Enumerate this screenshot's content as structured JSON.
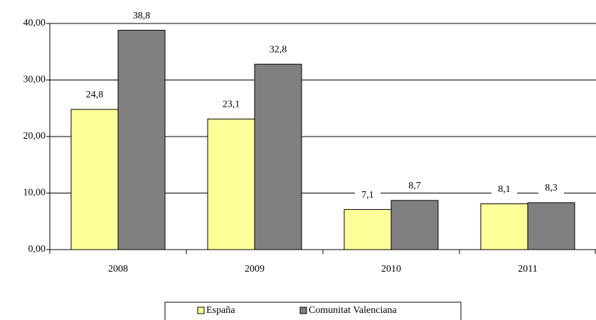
{
  "chart_data": {
    "type": "bar",
    "categories": [
      "2008",
      "2009",
      "2010",
      "2011"
    ],
    "series": [
      {
        "name": "España",
        "color": "#ffff99",
        "values": [
          24.8,
          23.1,
          7.1,
          8.1
        ],
        "value_labels": [
          "24,8",
          "23,1",
          "7,1",
          "8,1"
        ]
      },
      {
        "name": "Comunitat Valenciana",
        "color": "#808080",
        "values": [
          38.8,
          32.8,
          8.7,
          8.3
        ],
        "value_labels": [
          "38,8",
          "32,8",
          "8,7",
          "8,3"
        ]
      }
    ],
    "ylim": [
      0,
      40
    ],
    "yticks": [
      {
        "value": 0,
        "label": "0,00"
      },
      {
        "value": 10,
        "label": "10,00"
      },
      {
        "value": 20,
        "label": "20,00"
      },
      {
        "value": 30,
        "label": "30,00"
      },
      {
        "value": 40,
        "label": "40,00"
      }
    ],
    "grid": true,
    "legend": "bottom"
  }
}
